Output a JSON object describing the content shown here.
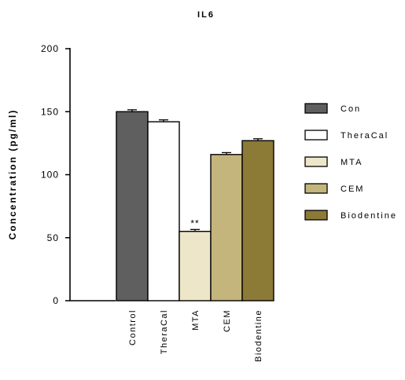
{
  "chart_data": {
    "type": "bar",
    "title": "IL6",
    "xlabel": "",
    "ylabel": "Concentration (pg/ml)",
    "ylim": [
      0,
      200
    ],
    "yticks": [
      0,
      50,
      100,
      150,
      200
    ],
    "grid": false,
    "legend_position": "right",
    "categories": [
      "Control",
      "TheraCal",
      "MTA",
      "CEM",
      "Biodentine"
    ],
    "values": [
      150,
      142,
      55,
      116,
      127
    ],
    "errors": [
      1.5,
      1.5,
      1.5,
      1.5,
      1.5
    ],
    "annotations": [
      "",
      "",
      "**",
      "",
      ""
    ],
    "colors": [
      "#5f5f5f",
      "#ffffff",
      "#ede6c8",
      "#c4b57c",
      "#8c7a37"
    ],
    "legend": [
      "Con",
      "TheraCal",
      "MTA",
      "CEM",
      "Biodentine"
    ]
  }
}
